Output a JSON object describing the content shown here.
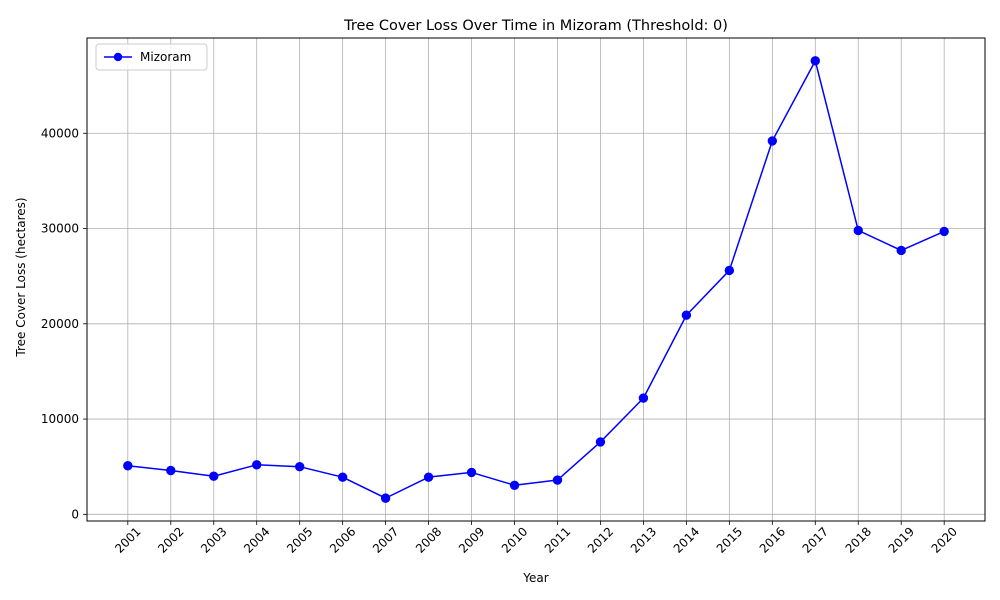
{
  "chart_data": {
    "type": "line",
    "title": "Tree Cover Loss Over Time in Mizoram (Threshold: 0)",
    "xlabel": "Year",
    "ylabel": "Tree Cover Loss (hectares)",
    "categories": [
      "2001",
      "2002",
      "2003",
      "2004",
      "2005",
      "2006",
      "2007",
      "2008",
      "2009",
      "2010",
      "2011",
      "2012",
      "2013",
      "2014",
      "2015",
      "2016",
      "2017",
      "2018",
      "2019",
      "2020"
    ],
    "series": [
      {
        "name": "Mizoram",
        "color": "#0000ff",
        "marker": "circle",
        "values": [
          5100,
          4600,
          4000,
          5200,
          5000,
          3900,
          1700,
          3900,
          4400,
          3050,
          3600,
          7600,
          12200,
          20900,
          25600,
          39200,
          47600,
          29800,
          27700,
          29700
        ]
      }
    ],
    "ylim": [
      -700,
      50000
    ],
    "yticks": [
      0,
      10000,
      20000,
      30000,
      40000
    ],
    "ytick_labels": [
      "0",
      "10000",
      "20000",
      "30000",
      "40000"
    ],
    "grid": true,
    "legend": "top-left"
  }
}
